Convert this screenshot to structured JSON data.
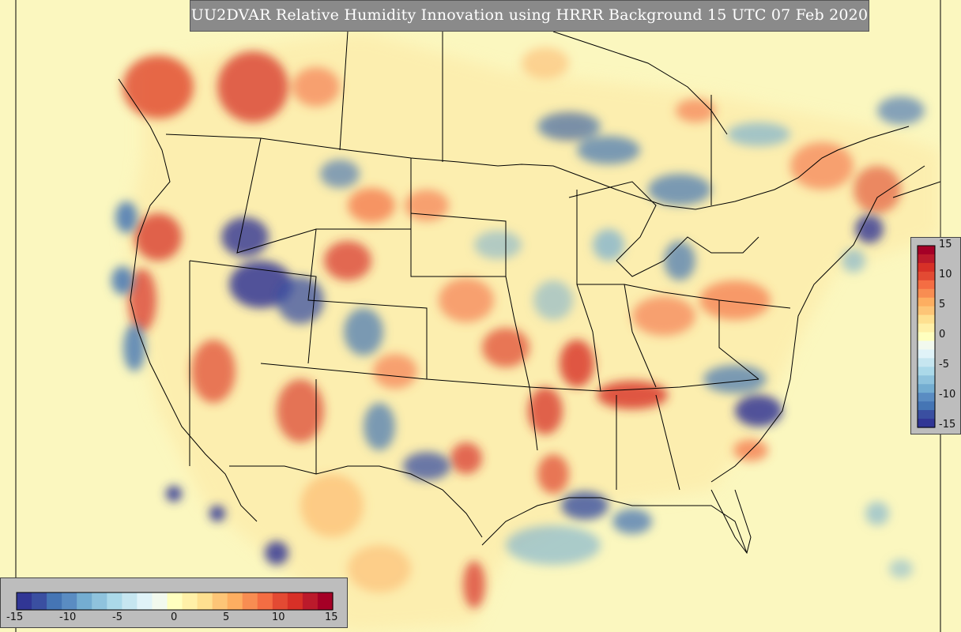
{
  "title": "UU2DVAR Relative Humidity Innovation using HRRR Background 15 UTC 07 Feb 2020",
  "colorbar": {
    "ticks": [
      "-15",
      "-10",
      "-5",
      "0",
      "5",
      "10",
      "15"
    ],
    "colors": [
      "#313695",
      "#3a4fa1",
      "#4575b4",
      "#5a8cc2",
      "#74add1",
      "#8fc3dd",
      "#abd9e9",
      "#c6e6f0",
      "#e0f3f8",
      "#f2f9ee",
      "#ffffbf",
      "#fff0a8",
      "#fee090",
      "#fdc577",
      "#fdae61",
      "#f88d52",
      "#f46d43",
      "#e34a33",
      "#d73027",
      "#bb1a2b",
      "#a50026"
    ]
  },
  "map": {
    "region": "CONUS",
    "background_color": "#fbf7bf",
    "border_color": "#000000"
  }
}
